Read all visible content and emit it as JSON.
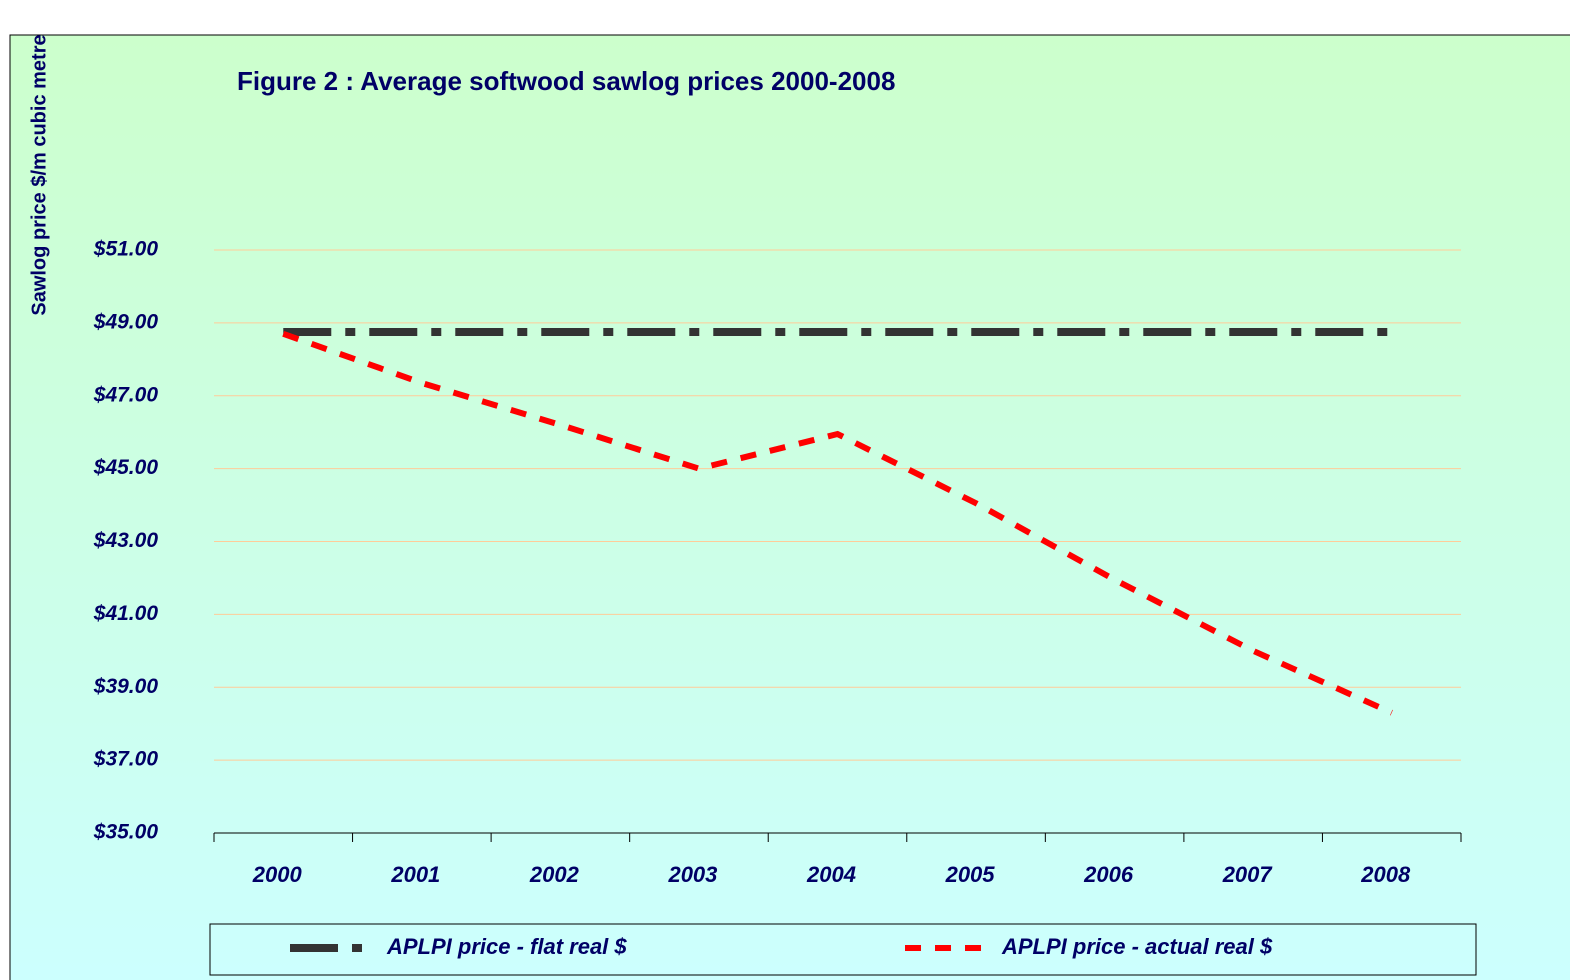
{
  "chart_data": {
    "type": "line",
    "title": "Figure 2 : Average softwood sawlog prices  2000-2008",
    "y_label": "Sawlog price $/m cubic metre",
    "categories": [
      "2000",
      "2001",
      "2002",
      "2003",
      "2004",
      "2005",
      "2006",
      "2007",
      "2008"
    ],
    "series": [
      {
        "name": "APLPI price - flat real $",
        "color": "#333333",
        "values": [
          48.75,
          48.75,
          48.75,
          48.75,
          48.75,
          48.75,
          48.75,
          48.75,
          48.75
        ]
      },
      {
        "name": "APLPI price - actual real $",
        "color": "#ff0000",
        "values": [
          48.7,
          47.35,
          46.2,
          45.0,
          45.95,
          44.05,
          41.95,
          40.0,
          38.3
        ]
      }
    ],
    "ylim": [
      35,
      51
    ],
    "yticks": [
      {
        "value": 35,
        "label": "$35.00"
      },
      {
        "value": 37,
        "label": "$37.00"
      },
      {
        "value": 39,
        "label": "$39.00"
      },
      {
        "value": 41,
        "label": "$41.00"
      },
      {
        "value": 43,
        "label": "$43.00"
      },
      {
        "value": 45,
        "label": "$45.00"
      },
      {
        "value": 47,
        "label": "$47.00"
      },
      {
        "value": 49,
        "label": "$49.00"
      },
      {
        "value": 51,
        "label": "$51.00"
      }
    ],
    "grid": true,
    "legend": "bottom"
  }
}
